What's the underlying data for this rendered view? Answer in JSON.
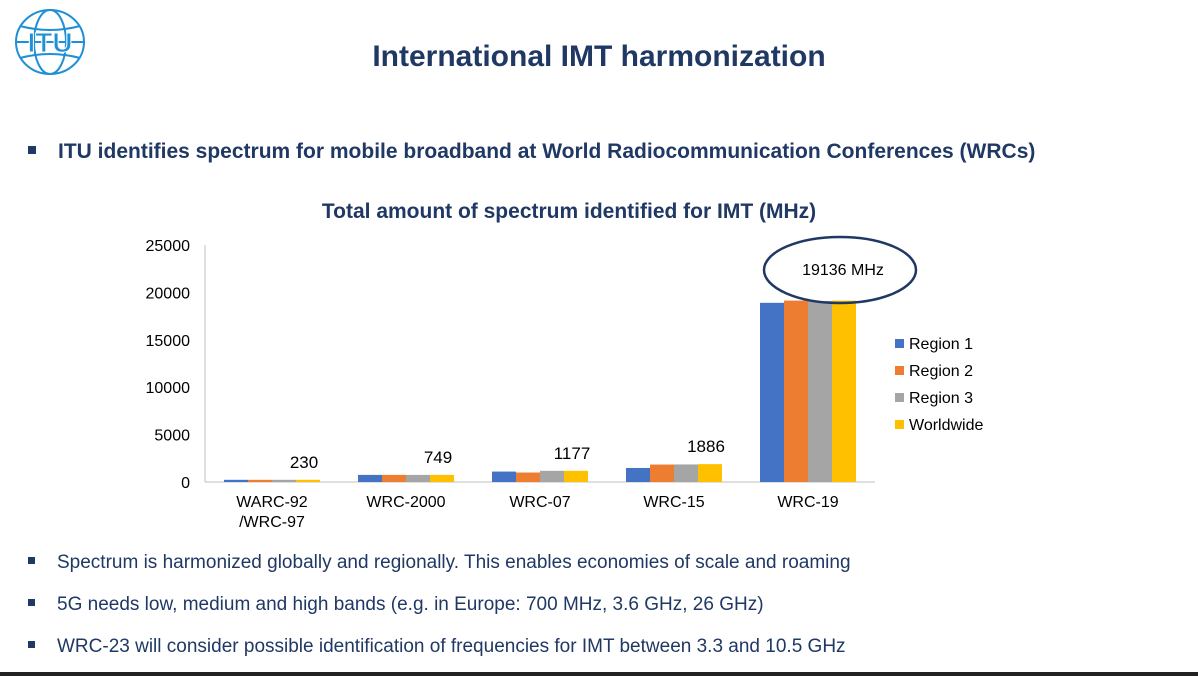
{
  "header": {
    "logo_text": "ITU",
    "title": "International IMT harmonization"
  },
  "main_bullet": "ITU identifies spectrum for mobile broadband at World Radiocommunication Conferences (WRCs)",
  "colors": {
    "title": "#1f3864",
    "region1": "#4472c4",
    "region2": "#ed7d31",
    "region3": "#a5a5a5",
    "worldwide": "#ffc000",
    "logo": "#1f8fd6"
  },
  "chart_data": {
    "type": "bar",
    "title": "Total amount of spectrum identified for IMT (MHz)",
    "categories": [
      "WARC-92\n/WRC-97",
      "WRC-2000",
      "WRC-07",
      "WRC-15",
      "WRC-19"
    ],
    "category_lines": [
      [
        "WARC-92",
        "/WRC-97"
      ],
      [
        "WRC-2000"
      ],
      [
        "WRC-07"
      ],
      [
        "WRC-15"
      ],
      [
        "WRC-19"
      ]
    ],
    "series": [
      {
        "name": "Region 1",
        "values": [
          230,
          749,
          1100,
          1480,
          18900
        ]
      },
      {
        "name": "Region 2",
        "values": [
          230,
          749,
          1000,
          1840,
          19136
        ]
      },
      {
        "name": "Region 3",
        "values": [
          230,
          749,
          1177,
          1850,
          19100
        ]
      },
      {
        "name": "Worldwide",
        "values": [
          230,
          749,
          1177,
          1886,
          19136
        ]
      }
    ],
    "data_labels": [
      "230",
      "749",
      "1177",
      "1886"
    ],
    "highlight_label": "19136 MHz",
    "ylim": [
      0,
      25000
    ],
    "yticks": [
      0,
      5000,
      10000,
      15000,
      20000,
      25000
    ],
    "legend_position": "right",
    "grid": false
  },
  "bottom_bullets": [
    "Spectrum is harmonized globally and regionally. This enables economies of scale and roaming",
    "5G needs low, medium and high bands (e.g. in Europe: 700 MHz, 3.6 GHz, 26 GHz)",
    "WRC-23 will consider possible identification of frequencies for IMT between 3.3 and 10.5 GHz"
  ]
}
